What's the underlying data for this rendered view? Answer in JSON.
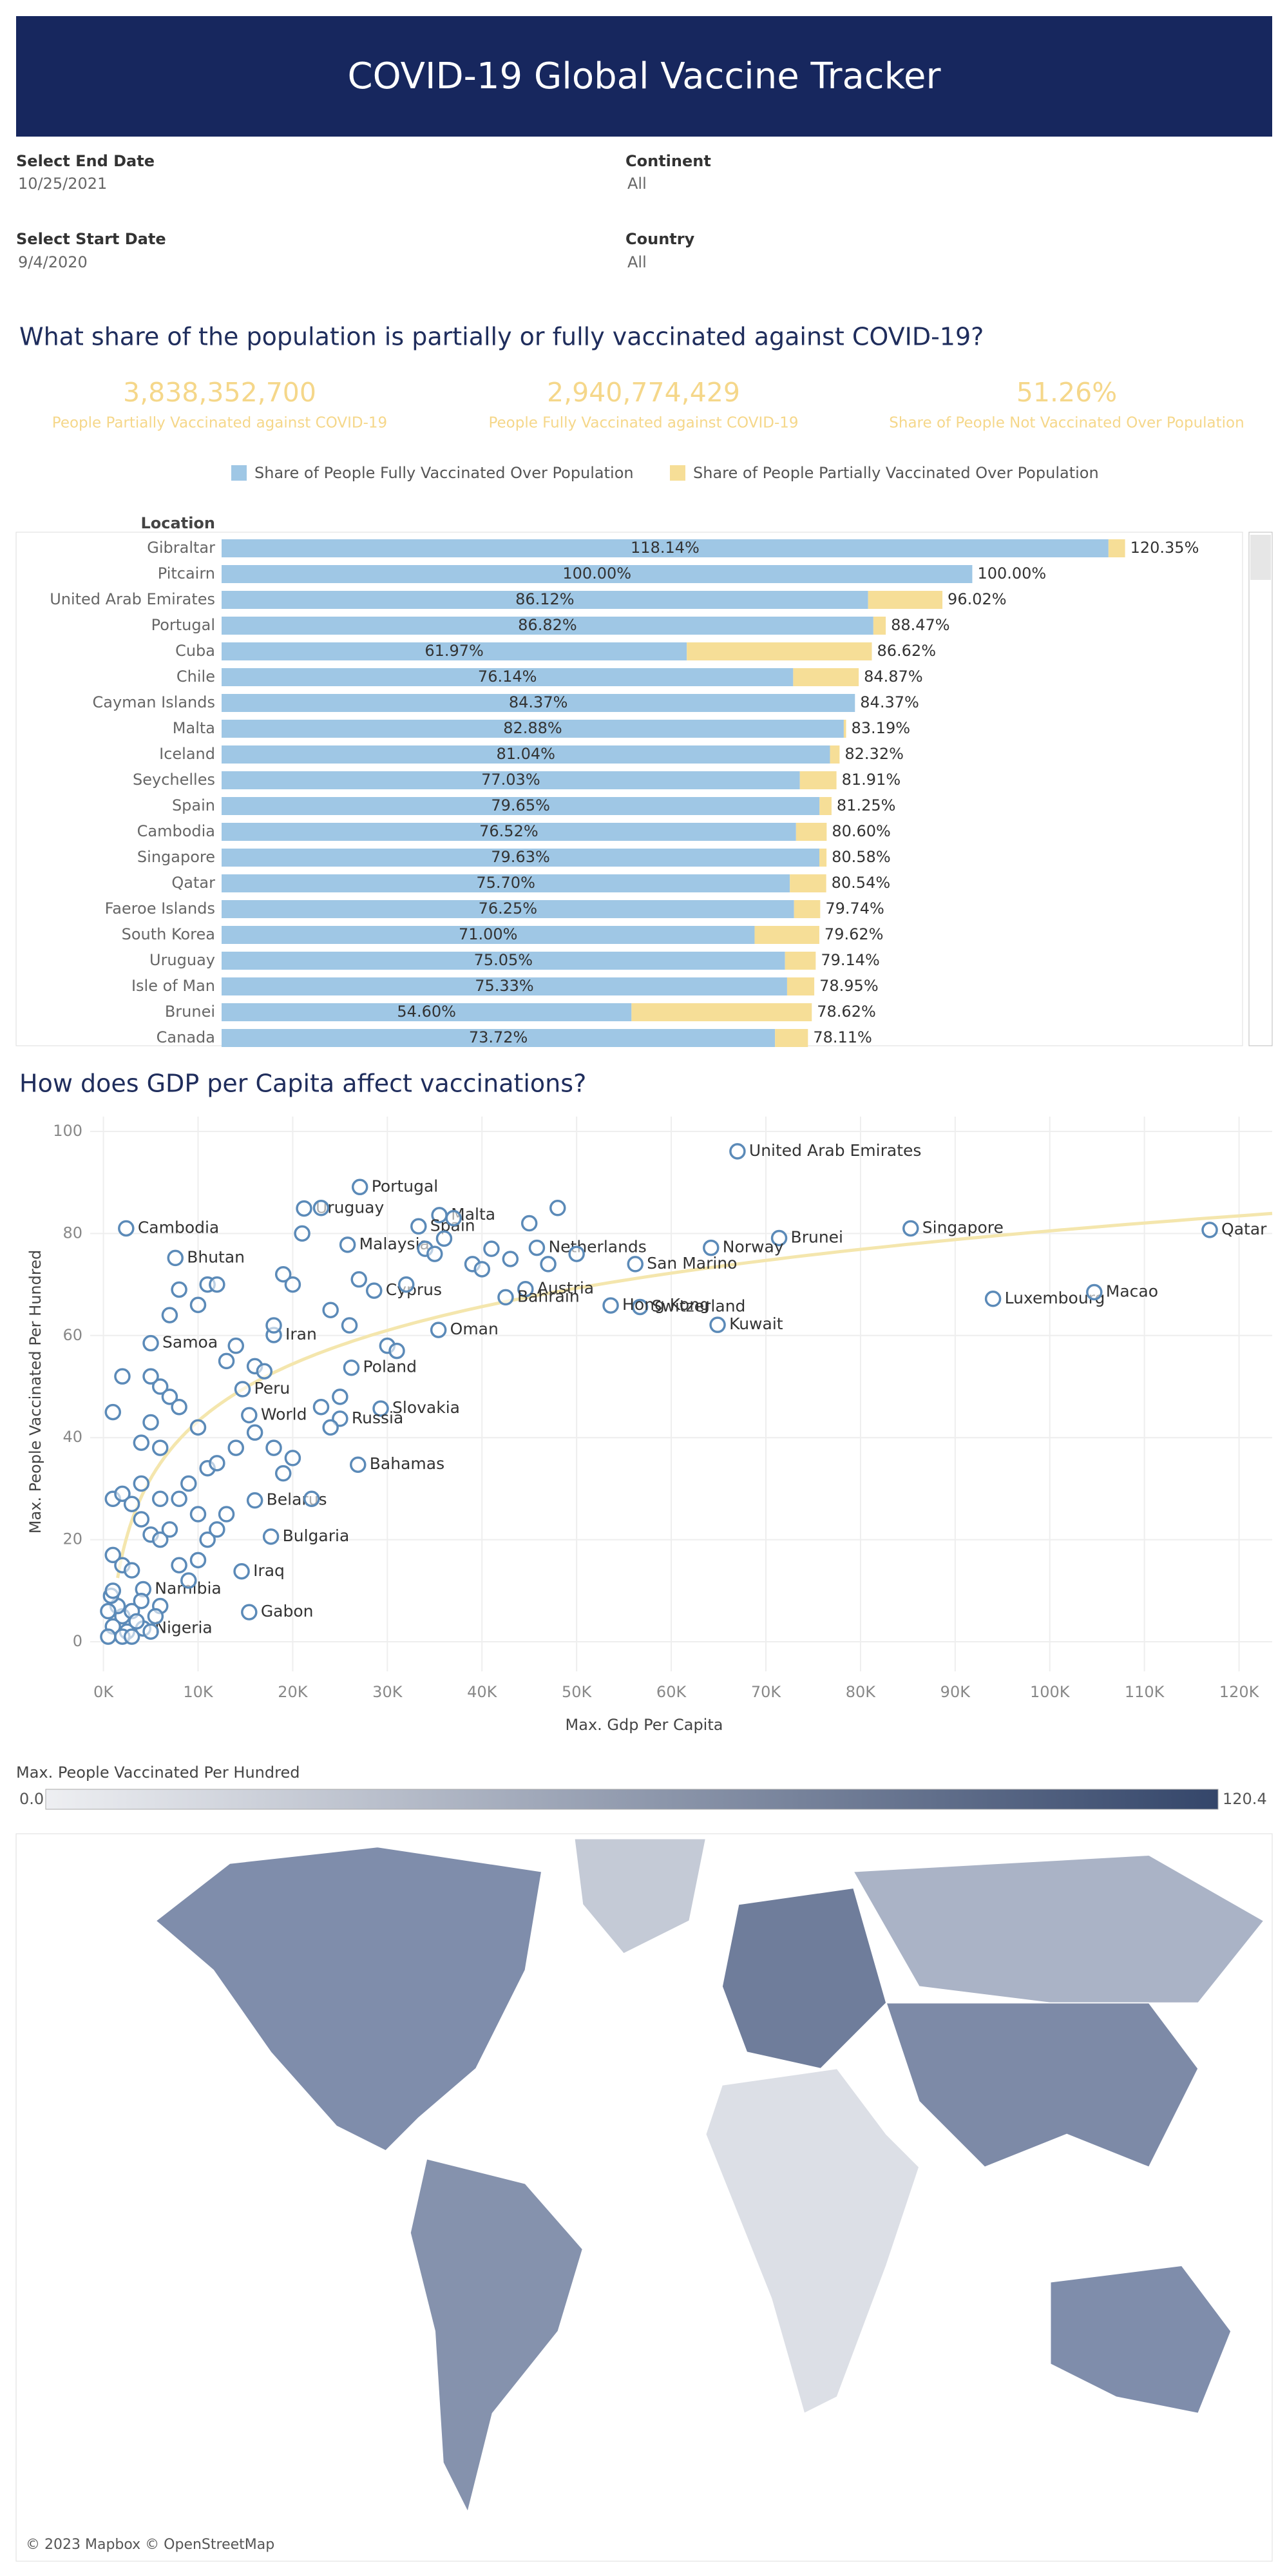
{
  "header": {
    "title": "COVID-19 Global Vaccine Tracker"
  },
  "filters": [
    {
      "label": "Select End Date",
      "value": "10/25/2021"
    },
    {
      "label": "Continent",
      "value": "All"
    },
    {
      "label": "Select Start Date",
      "value": "9/4/2020"
    },
    {
      "label": "Country",
      "value": "All"
    }
  ],
  "kpis": [
    {
      "value": "3,838,352,700",
      "label": "People Partially Vaccinated against COVID-19"
    },
    {
      "value": "2,940,774,429",
      "label": "People Fully Vaccinated against COVID-19"
    },
    {
      "value": "51.26%",
      "label": "Share of People Not Vaccinated Over Population"
    }
  ],
  "chart_data": [
    {
      "type": "hbar",
      "title": "What share of the population is partially or fully vaccinated against COVID-19?",
      "y_axis_label": "Location",
      "categories": [
        "Gibraltar",
        "Pitcairn",
        "United Arab Emirates",
        "Portugal",
        "Cuba",
        "Chile",
        "Cayman Islands",
        "Malta",
        "Iceland",
        "Seychelles",
        "Spain",
        "Cambodia",
        "Singapore",
        "Qatar",
        "Faeroe Islands",
        "South Korea",
        "Uruguay",
        "Isle of Man",
        "Brunei",
        "Canada"
      ],
      "series": [
        {
          "name": "Share of People Fully Vaccinated Over Population",
          "color": "#9fc7e5",
          "values": [
            118.14,
            100.0,
            86.12,
            86.82,
            61.97,
            76.14,
            84.37,
            82.88,
            81.04,
            77.03,
            79.65,
            76.52,
            79.63,
            75.7,
            76.25,
            71.0,
            75.05,
            75.33,
            54.6,
            73.72
          ],
          "value_labels": [
            "118.14%",
            "100.00%",
            "86.12%",
            "86.82%",
            "61.97%",
            "76.14%",
            "84.37%",
            "82.88%",
            "81.04%",
            "77.03%",
            "79.65%",
            "76.52%",
            "79.63%",
            "75.70%",
            "76.25%",
            "71.00%",
            "75.05%",
            "75.33%",
            "54.60%",
            "73.72%"
          ]
        },
        {
          "name": "Share of People Partially Vaccinated Over Population",
          "color": "#f6de97",
          "values": [
            2.21,
            0,
            9.9,
            1.65,
            24.65,
            8.73,
            0,
            0.31,
            1.28,
            4.88,
            1.6,
            4.08,
            0.95,
            4.84,
            3.49,
            8.62,
            4.09,
            3.62,
            24.02,
            4.39
          ]
        }
      ],
      "total_labels": [
        "120.35%",
        "100.00%",
        "96.02%",
        "88.47%",
        "86.62%",
        "84.87%",
        "84.37%",
        "83.19%",
        "82.32%",
        "81.91%",
        "81.25%",
        "80.60%",
        "80.58%",
        "80.54%",
        "79.74%",
        "79.62%",
        "79.14%",
        "78.95%",
        "78.62%",
        "78.11%"
      ],
      "xlim": [
        0,
        136
      ]
    },
    {
      "type": "scatter",
      "title": "How does GDP per Capita affect vaccinations?",
      "xlabel": "Max. Gdp Per Capita",
      "ylabel": "Max. People Vaccinated Per Hundred",
      "color": "#5b8ab8",
      "trendline": "logarithmic",
      "trend_color": "#f4e6ad",
      "grid": true,
      "xlim": [
        -1400,
        123500
      ],
      "ylim": [
        -5.8,
        102.9
      ],
      "xticks": [
        {
          "value": 0,
          "label": "0K"
        },
        {
          "value": 10000,
          "label": "10K"
        },
        {
          "value": 20000,
          "label": "20K"
        },
        {
          "value": 30000,
          "label": "30K"
        },
        {
          "value": 40000,
          "label": "40K"
        },
        {
          "value": 50000,
          "label": "50K"
        },
        {
          "value": 60000,
          "label": "60K"
        },
        {
          "value": 70000,
          "label": "70K"
        },
        {
          "value": 80000,
          "label": "80K"
        },
        {
          "value": 90000,
          "label": "90K"
        },
        {
          "value": 100000,
          "label": "100K"
        },
        {
          "value": 110000,
          "label": "110K"
        },
        {
          "value": 120000,
          "label": "120K"
        }
      ],
      "yticks": [
        0,
        20,
        40,
        60,
        80,
        100
      ],
      "x": [
        67000,
        116900,
        85300,
        71400,
        64200,
        94000,
        104700,
        56200,
        56700,
        53600,
        64900,
        45800,
        44600,
        42500,
        35500,
        33300,
        27100,
        21200,
        25800,
        28600,
        26200,
        35400,
        29300,
        25000,
        26900,
        18000,
        14700,
        15400,
        16000,
        17700,
        14600,
        15400,
        4200,
        4200,
        5000,
        2400,
        7600,
        2000,
        1000,
        500,
        1500,
        3000,
        2500,
        800,
        1000,
        3500,
        4000,
        5000,
        6000,
        2000,
        500,
        3000,
        5500,
        1000,
        2000,
        3000,
        4000,
        5000,
        6000,
        8000,
        9000,
        10000,
        11000,
        12000,
        13000,
        10000,
        7000,
        1000,
        2000,
        3000,
        4000,
        6000,
        8000,
        9000,
        11000,
        12000,
        14000,
        16000,
        18000,
        19000,
        20000,
        22000,
        23000,
        24000,
        25000,
        1000,
        2000,
        4000,
        5000,
        6000,
        7000,
        8000,
        10000,
        5000,
        6000,
        7000,
        8000,
        10000,
        11000,
        12000,
        13000,
        14000,
        16000,
        17000,
        18000,
        19000,
        20000,
        21000,
        23000,
        24000,
        26000,
        27000,
        30000,
        31000,
        32000,
        34000,
        35000,
        36000,
        37000,
        39000,
        40000,
        41000,
        43000,
        45000,
        47000,
        48000,
        50000
      ],
      "values": [
        96.1,
        80.7,
        81.0,
        79.1,
        77.2,
        67.2,
        68.5,
        74.0,
        65.6,
        65.9,
        62.1,
        77.2,
        69.1,
        67.5,
        83.6,
        81.4,
        89.1,
        84.9,
        77.8,
        68.8,
        53.7,
        61.1,
        45.7,
        43.7,
        34.7,
        60.1,
        49.5,
        44.4,
        27.7,
        20.6,
        13.8,
        5.8,
        10.3,
        2.6,
        58.5,
        81.0,
        75.2,
        5,
        3,
        1,
        7,
        6,
        2,
        9,
        10,
        4,
        8,
        2,
        7,
        1,
        6,
        1,
        5,
        17,
        15,
        14,
        24,
        21,
        20,
        15,
        12,
        16,
        20,
        22,
        25,
        25,
        22,
        28,
        29,
        27,
        31,
        28,
        28,
        31,
        34,
        35,
        38,
        41,
        38,
        33,
        36,
        28,
        46,
        42,
        48,
        45,
        52,
        39,
        43,
        50,
        48,
        46,
        42,
        52,
        38,
        64,
        69,
        66,
        70,
        70,
        55,
        58,
        54,
        53,
        62,
        72,
        70,
        80,
        85,
        65,
        62,
        71,
        58,
        57,
        70,
        77,
        76,
        79,
        83,
        74,
        73,
        77,
        75,
        82,
        74,
        85,
        76
      ],
      "labels": [
        "United Arab Emirates",
        "Qatar",
        "Singapore",
        "Brunei",
        "Norway",
        "Luxembourg",
        "Macao",
        "San Marino",
        "Switzerland",
        "Hong Kong",
        "Kuwait",
        "Netherlands",
        "Austria",
        "Bahrain",
        "Malta",
        "Spain",
        "Portugal",
        "Uruguay",
        "Malaysia",
        "Cyprus",
        "Poland",
        "Oman",
        "Slovakia",
        "Russia",
        "Bahamas",
        "Iran",
        "Peru",
        "World",
        "Belarus",
        "Bulgaria",
        "Iraq",
        "Gabon",
        "Namibia",
        "Nigeria",
        "Samoa",
        "Cambodia",
        "Bhutan",
        null,
        null,
        null,
        null,
        null,
        null,
        null,
        null,
        null,
        null,
        null,
        null,
        null,
        null,
        null,
        null,
        null,
        null,
        null,
        null,
        null,
        null,
        null,
        null,
        null,
        null,
        null,
        null,
        null,
        null,
        null,
        null,
        null,
        null,
        null,
        null,
        null,
        null,
        null,
        null,
        null,
        null,
        null,
        null,
        null,
        null,
        null,
        null,
        null,
        null,
        null,
        null,
        null,
        null,
        null,
        null,
        null,
        null,
        null,
        null,
        null,
        null,
        null,
        null,
        null,
        null,
        null,
        null,
        null,
        null,
        null,
        null,
        null,
        null,
        null,
        null,
        null,
        null,
        null,
        null,
        null,
        null,
        null,
        null,
        null,
        null,
        null,
        null,
        null,
        null
      ]
    }
  ],
  "map": {
    "legend_title": "Max. People Vaccinated Per Hundred",
    "range": [
      {
        "value": 0,
        "label": "0.0"
      },
      120.4
    ],
    "colors": [
      "#eeeff2",
      "#34466a"
    ],
    "attribution": "© 2023 Mapbox © OpenStreetMap"
  }
}
